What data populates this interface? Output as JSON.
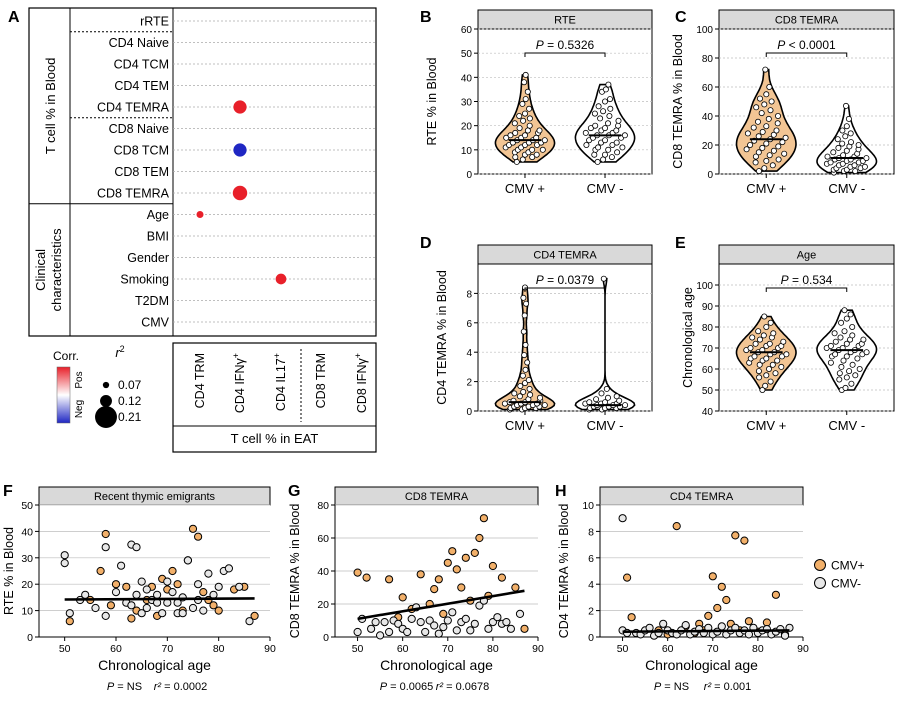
{
  "chart_data": [
    {
      "panel": "A",
      "type": "dot-matrix",
      "row_groups": [
        {
          "label": "T cell % in Blood",
          "rows": [
            "rRTE",
            "CD4 Naive",
            "CD4 TCM",
            "CD4 TEM",
            "CD4 TEMRA",
            "CD8 Naive",
            "CD8 TCM",
            "CD8 TEM",
            "CD8 TEMRA"
          ]
        },
        {
          "label": "Clinical characteristics",
          "rows": [
            "Age",
            "BMI",
            "Gender",
            "Smoking",
            "T2DM",
            "CMV"
          ]
        }
      ],
      "columns": [
        "CD4 TRM",
        "CD4 IFNγ",
        "CD4 IL17",
        "CD8 TRM",
        "CD8 IFNγ"
      ],
      "column_sup": [
        "",
        "+",
        "+",
        "",
        "+"
      ],
      "xlabel": "T cell % in EAT",
      "dots": [
        {
          "row": "CD4 TEMRA",
          "col": "CD4 IFNγ",
          "r2": 0.12,
          "sign": "pos"
        },
        {
          "row": "CD8 TCM",
          "col": "CD4 IFNγ",
          "r2": 0.12,
          "sign": "neg"
        },
        {
          "row": "CD8 TEMRA",
          "col": "CD4 IFNγ",
          "r2": 0.13,
          "sign": "pos"
        },
        {
          "row": "Age",
          "col": "CD4 TRM",
          "r2": 0.07,
          "sign": "pos"
        },
        {
          "row": "Smoking",
          "col": "CD4 IL17",
          "r2": 0.1,
          "sign": "pos"
        }
      ],
      "legend": {
        "color_title": "Corr.",
        "pos_label": "Pos",
        "neg_label": "Neg",
        "size_title": "r",
        "size_title_sup": "2",
        "size_entries": [
          {
            "label": "0.07",
            "value": 0.07
          },
          {
            "label": "0.12",
            "value": 0.12
          },
          {
            "label": "0.21",
            "value": 0.21
          }
        ]
      },
      "colors": {
        "pos": "#e8202a",
        "neg": "#1f27c3"
      }
    },
    {
      "panel": "B",
      "type": "violin",
      "title": "RTE",
      "ylabel": "RTE % in Blood",
      "ylim": [
        0,
        60
      ],
      "yticks": [
        0,
        10,
        20,
        30,
        40,
        50,
        60
      ],
      "categories": [
        "CMV +",
        "CMV -"
      ],
      "p_label": "P = 0.5326",
      "medians": [
        14,
        16
      ],
      "groups": [
        {
          "fill": "#f2c594",
          "points": [
            5,
            6,
            7,
            7,
            8,
            8,
            9,
            9,
            10,
            10,
            10,
            11,
            11,
            12,
            12,
            12,
            13,
            13,
            13,
            14,
            14,
            14,
            15,
            15,
            15,
            16,
            16,
            17,
            17,
            18,
            18,
            19,
            20,
            21,
            22,
            23,
            24,
            25,
            27,
            29,
            31,
            34,
            38,
            41
          ]
        },
        {
          "fill": "#ffffff",
          "points": [
            5,
            6,
            7,
            8,
            8,
            9,
            10,
            10,
            11,
            11,
            12,
            12,
            13,
            13,
            14,
            14,
            15,
            15,
            16,
            16,
            16,
            17,
            17,
            18,
            18,
            19,
            19,
            20,
            20,
            21,
            22,
            23,
            24,
            25,
            26,
            27,
            28,
            30,
            31,
            34,
            35,
            37
          ]
        }
      ]
    },
    {
      "panel": "C",
      "type": "violin",
      "title": "CD8 TEMRA",
      "ylabel": "CD8 TEMRA % in Blood",
      "ylim": [
        0,
        100
      ],
      "yticks": [
        0,
        20,
        40,
        60,
        80,
        100
      ],
      "categories": [
        "CMV +",
        "CMV -"
      ],
      "p_label": "P < 0.0001",
      "medians": [
        24,
        11
      ],
      "groups": [
        {
          "fill": "#f2c594",
          "points": [
            2,
            4,
            6,
            8,
            9,
            10,
            12,
            13,
            14,
            15,
            16,
            17,
            18,
            19,
            20,
            21,
            22,
            23,
            24,
            25,
            26,
            27,
            28,
            29,
            30,
            32,
            33,
            35,
            36,
            38,
            40,
            42,
            44,
            46,
            48,
            50,
            52,
            55,
            60,
            72
          ]
        },
        {
          "fill": "#ffffff",
          "points": [
            1,
            2,
            2,
            3,
            3,
            4,
            4,
            5,
            5,
            6,
            6,
            7,
            7,
            8,
            8,
            9,
            9,
            10,
            10,
            11,
            11,
            12,
            12,
            13,
            14,
            15,
            16,
            17,
            18,
            19,
            20,
            21,
            22,
            24,
            26,
            28,
            30,
            33,
            38,
            47
          ]
        }
      ]
    },
    {
      "panel": "D",
      "type": "violin",
      "title": "CD4 TEMRA",
      "ylabel": "CD4 TEMRA % in Blood",
      "ylim": [
        0,
        10
      ],
      "yticks": [
        0,
        2,
        4,
        6,
        8
      ],
      "categories": [
        "CMV +",
        "CMV -"
      ],
      "p_label": "P = 0.0379",
      "medians": [
        0.6,
        0.4
      ],
      "groups": [
        {
          "fill": "#f2c594",
          "points": [
            0.1,
            0.1,
            0.2,
            0.2,
            0.2,
            0.3,
            0.3,
            0.3,
            0.4,
            0.4,
            0.4,
            0.5,
            0.5,
            0.5,
            0.6,
            0.6,
            0.7,
            0.7,
            0.8,
            0.9,
            1.0,
            1.1,
            1.2,
            1.3,
            1.5,
            1.7,
            1.9,
            2.1,
            2.4,
            2.8,
            3.3,
            3.8,
            4.5,
            5.4,
            6.5,
            7.3,
            7.7,
            8.4
          ]
        },
        {
          "fill": "#ffffff",
          "points": [
            0.1,
            0.1,
            0.2,
            0.2,
            0.2,
            0.3,
            0.3,
            0.3,
            0.4,
            0.4,
            0.4,
            0.5,
            0.5,
            0.5,
            0.6,
            0.6,
            0.7,
            0.8,
            0.9,
            1.0,
            1.2,
            1.5,
            9.0
          ]
        }
      ]
    },
    {
      "panel": "E",
      "type": "violin",
      "title": "Age",
      "ylabel": "Chronological age",
      "ylim": [
        40,
        110
      ],
      "yticks": [
        40,
        50,
        60,
        70,
        80,
        90,
        100
      ],
      "categories": [
        "CMV +",
        "CMV -"
      ],
      "p_label": "P = 0.534",
      "medians": [
        68,
        69
      ],
      "groups": [
        {
          "fill": "#f2c594",
          "points": [
            50,
            52,
            54,
            56,
            57,
            58,
            59,
            60,
            61,
            62,
            62,
            63,
            64,
            64,
            65,
            65,
            66,
            66,
            67,
            67,
            68,
            68,
            69,
            69,
            70,
            70,
            71,
            71,
            72,
            72,
            73,
            74,
            75,
            75,
            76,
            77,
            78,
            80,
            82,
            85
          ]
        },
        {
          "fill": "#ffffff",
          "points": [
            50,
            51,
            53,
            55,
            56,
            57,
            58,
            59,
            60,
            61,
            62,
            63,
            64,
            65,
            66,
            66,
            67,
            67,
            68,
            68,
            69,
            69,
            70,
            70,
            71,
            71,
            72,
            72,
            73,
            74,
            74,
            75,
            76,
            77,
            78,
            80,
            82,
            84,
            86,
            88
          ]
        }
      ]
    },
    {
      "panel": "F",
      "type": "scatter",
      "title": "Recent thymic emigrants",
      "xlabel": "Chronological age",
      "ylabel": "RTE % in Blood",
      "xlim": [
        45,
        90
      ],
      "ylim": [
        0,
        50
      ],
      "xticks": [
        50,
        60,
        70,
        80,
        90
      ],
      "yticks": [
        0,
        10,
        20,
        30,
        40,
        50
      ],
      "caption_p": "P = NS",
      "caption_r2": "r² = 0.0002",
      "fit": {
        "x": [
          50,
          87
        ],
        "y": [
          14.2,
          14.6
        ]
      },
      "series": [
        {
          "name": "CMV+",
          "color": "#f2b06a",
          "x": [
            51,
            55,
            57,
            58,
            59,
            60,
            62,
            63,
            64,
            66,
            67,
            68,
            69,
            70,
            71,
            72,
            73,
            74,
            75,
            76,
            77,
            78,
            79,
            80,
            83,
            85,
            87
          ],
          "y": [
            6,
            14,
            25,
            39,
            12,
            20,
            19,
            7,
            10,
            14,
            19,
            8,
            22,
            18,
            25,
            20,
            10,
            29,
            41,
            38,
            17,
            14,
            12,
            10,
            18,
            19,
            8
          ]
        },
        {
          "name": "CMV-",
          "color": "#e8e8e8",
          "x": [
            50,
            50,
            51,
            53,
            54,
            56,
            58,
            58,
            60,
            61,
            62,
            63,
            63,
            64,
            64,
            65,
            65,
            66,
            66,
            67,
            68,
            68,
            69,
            70,
            70,
            71,
            72,
            72,
            73,
            73,
            74,
            75,
            76,
            76,
            77,
            78,
            79,
            80,
            81,
            82,
            84,
            86
          ],
          "y": [
            31,
            28,
            9,
            14,
            16,
            11,
            34,
            8,
            17,
            27,
            13,
            35,
            12,
            34,
            16,
            21,
            9,
            11,
            18,
            14,
            16,
            13,
            9,
            21,
            13,
            17,
            9,
            13,
            15,
            9,
            29,
            11,
            14,
            20,
            10,
            24,
            16,
            19,
            25,
            26,
            19,
            6
          ]
        }
      ]
    },
    {
      "panel": "G",
      "type": "scatter",
      "title": "CD8 TEMRA",
      "xlabel": "Chronological age",
      "ylabel": "CD8 TEMRA % in Blood",
      "xlim": [
        45,
        90
      ],
      "ylim": [
        0,
        80
      ],
      "xticks": [
        50,
        60,
        70,
        80,
        90
      ],
      "yticks": [
        0,
        20,
        40,
        60,
        80
      ],
      "caption_p": "P = 0.0065",
      "caption_r2": "r² = 0.0678",
      "fit": {
        "x": [
          50,
          87
        ],
        "y": [
          11,
          28
        ]
      },
      "series": [
        {
          "name": "CMV+",
          "color": "#f2b06a",
          "x": [
            50,
            52,
            57,
            59,
            60,
            62,
            64,
            66,
            67,
            68,
            69,
            70,
            71,
            72,
            73,
            74,
            75,
            76,
            77,
            78,
            79,
            80,
            82,
            85,
            87
          ],
          "y": [
            39,
            36,
            35,
            12,
            24,
            17,
            38,
            20,
            29,
            35,
            14,
            45,
            52,
            41,
            30,
            48,
            22,
            51,
            60,
            72,
            25,
            43,
            36,
            30,
            5
          ]
        },
        {
          "name": "CMV-",
          "color": "#e8e8e8",
          "x": [
            50,
            51,
            53,
            54,
            55,
            56,
            57,
            58,
            59,
            60,
            61,
            62,
            63,
            64,
            65,
            66,
            67,
            68,
            69,
            70,
            71,
            72,
            73,
            74,
            75,
            76,
            77,
            78,
            79,
            80,
            81,
            82,
            83,
            84,
            86
          ],
          "y": [
            3,
            11,
            5,
            9,
            1,
            9,
            3,
            10,
            8,
            5,
            3,
            11,
            18,
            9,
            3,
            10,
            7,
            2,
            6,
            10,
            15,
            4,
            9,
            11,
            4,
            8,
            19,
            22,
            5,
            9,
            12,
            8,
            9,
            5,
            14
          ]
        }
      ]
    },
    {
      "panel": "H",
      "type": "scatter",
      "title": "CD4 TEMRA",
      "xlabel": "Chronological age",
      "ylabel": "CD4 TEMRA % in Blood",
      "xlim": [
        45,
        90
      ],
      "ylim": [
        0,
        10
      ],
      "xticks": [
        50,
        60,
        70,
        80,
        90
      ],
      "yticks": [
        0,
        2,
        4,
        6,
        8,
        10
      ],
      "caption_p": "P = NS",
      "caption_r2": "r² = 0.001",
      "fit": {
        "x": [
          50,
          87
        ],
        "y": [
          0.4,
          0.5
        ]
      },
      "series": [
        {
          "name": "CMV+",
          "color": "#f2b06a",
          "x": [
            51,
            52,
            58,
            60,
            62,
            64,
            66,
            67,
            68,
            69,
            70,
            71,
            72,
            73,
            74,
            75,
            76,
            77,
            78,
            80,
            82,
            84,
            86
          ],
          "y": [
            4.5,
            1.5,
            0.5,
            0.2,
            8.4,
            0.8,
            0.3,
            1.0,
            0.5,
            1.6,
            4.6,
            2.2,
            3.8,
            2.8,
            1.0,
            7.7,
            0.5,
            7.3,
            1.2,
            0.4,
            1.1,
            3.2,
            0.2
          ]
        },
        {
          "name": "CMV-",
          "color": "#e8e8e8",
          "x": [
            50,
            50,
            51,
            53,
            54,
            55,
            56,
            57,
            58,
            59,
            60,
            61,
            62,
            63,
            64,
            65,
            66,
            67,
            68,
            69,
            70,
            71,
            72,
            73,
            74,
            75,
            76,
            77,
            78,
            79,
            80,
            81,
            82,
            83,
            84,
            85,
            86,
            87
          ],
          "y": [
            9.0,
            0.5,
            0.3,
            0.3,
            0.2,
            0.5,
            0.7,
            0.1,
            0.3,
            1.0,
            0.5,
            0.3,
            0.2,
            0.5,
            0.9,
            0.2,
            0.4,
            0.6,
            0.3,
            0.7,
            0.2,
            0.4,
            0.8,
            0.2,
            0.5,
            0.7,
            0.3,
            0.5,
            0.2,
            0.7,
            0.3,
            0.5,
            0.6,
            0.2,
            0.4,
            0.6,
            0.1,
            0.7
          ]
        }
      ],
      "legend": [
        {
          "label": "CMV+",
          "color": "#f2b06a"
        },
        {
          "label": "CMV-",
          "color": "#e8e8e8"
        }
      ]
    }
  ]
}
